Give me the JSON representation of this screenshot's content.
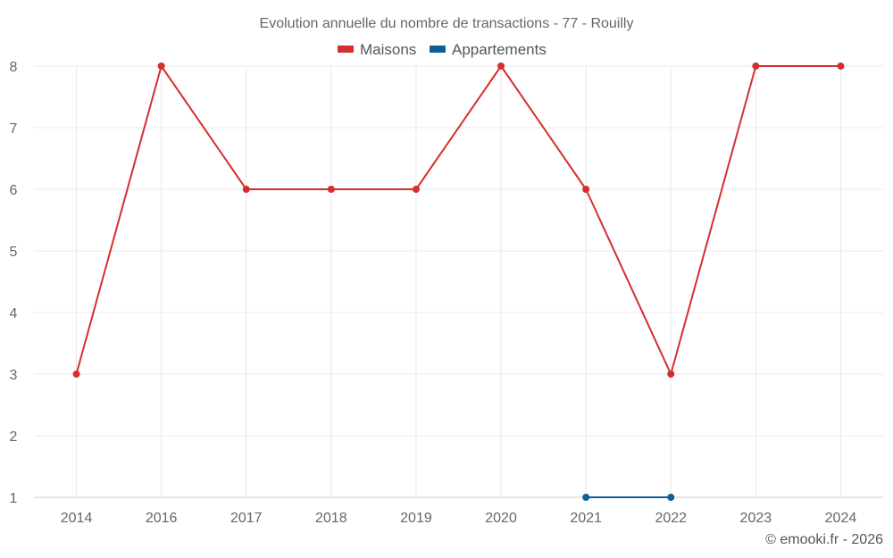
{
  "chart_data": {
    "type": "line",
    "title": "Evolution annuelle du nombre de transactions - 77 - Rouilly",
    "categories": [
      "2014",
      "2016",
      "2017",
      "2018",
      "2019",
      "2020",
      "2021",
      "2022",
      "2023",
      "2024"
    ],
    "series": [
      {
        "name": "Maisons",
        "color": "#d32f2f",
        "values": [
          3,
          8,
          6,
          6,
          6,
          8,
          6,
          3,
          8,
          8
        ]
      },
      {
        "name": "Appartements",
        "color": "#0d5f96",
        "values": [
          null,
          null,
          null,
          null,
          null,
          null,
          1,
          1,
          null,
          null
        ]
      }
    ],
    "ylim": [
      1,
      8
    ],
    "yticks": [
      "1",
      "2",
      "3",
      "4",
      "5",
      "6",
      "7",
      "8"
    ],
    "grid": true,
    "legend_position": "top-center",
    "credit": "© emooki.fr - 2026"
  }
}
